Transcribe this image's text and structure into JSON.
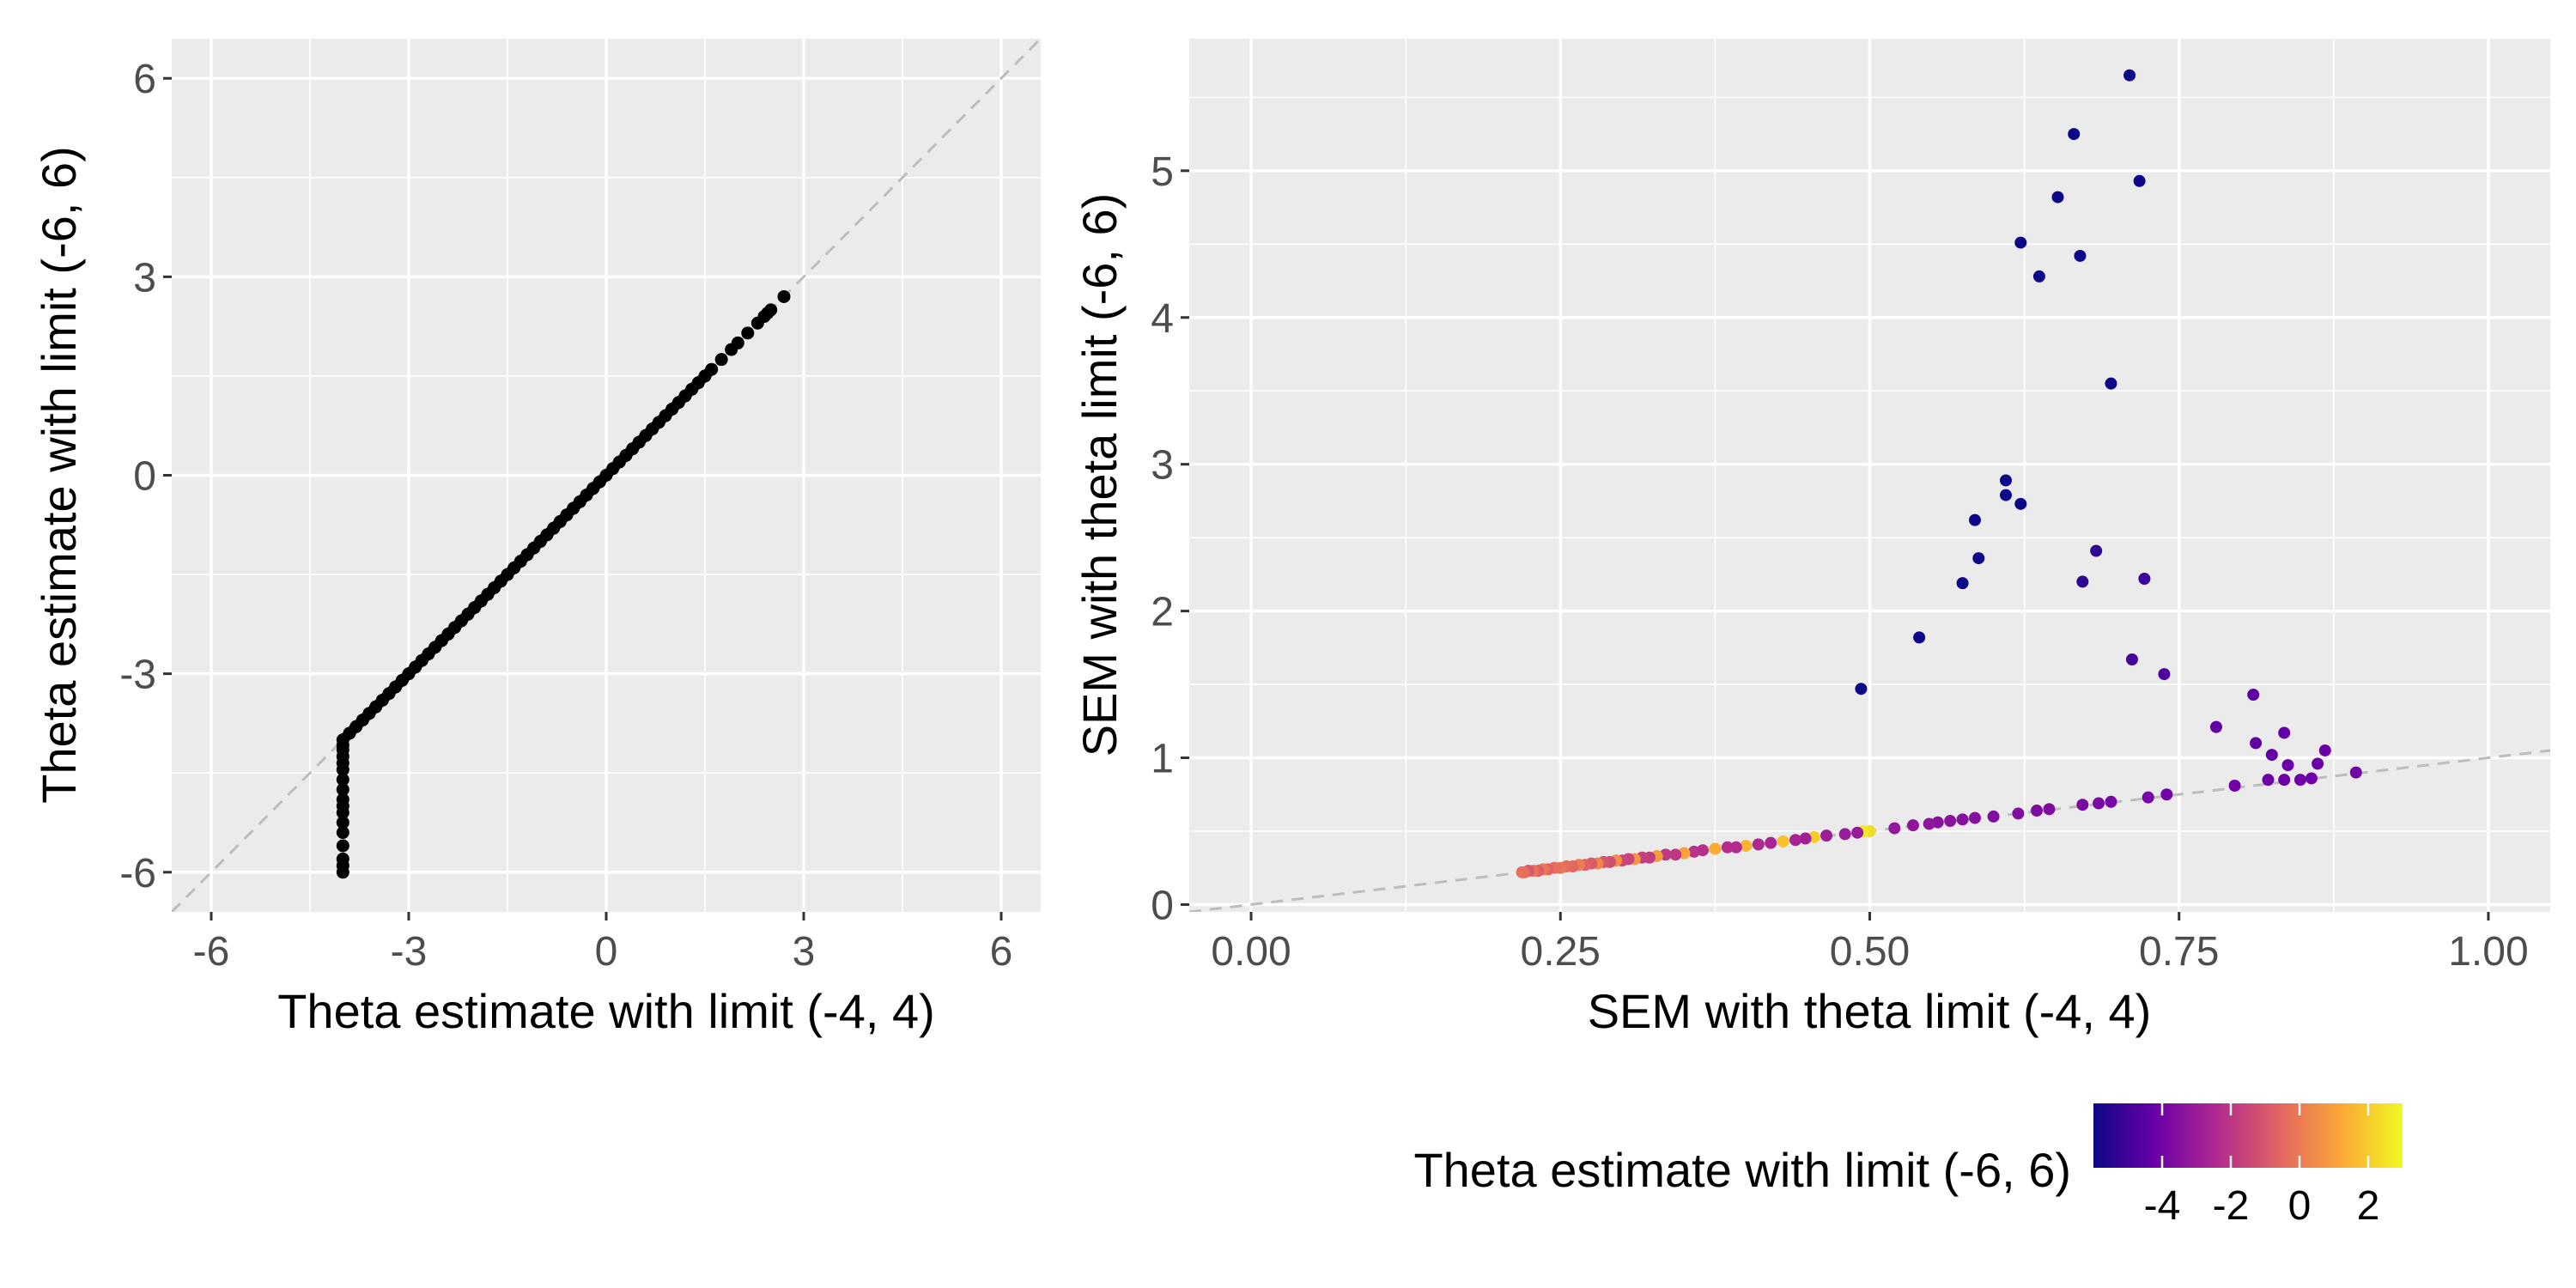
{
  "chart_data": [
    {
      "type": "scatter",
      "xlabel": "Theta estimate with limit (-4, 4)",
      "ylabel": "Theta estimate with limit (-6, 6)",
      "xlim": [
        -6.6,
        6.6
      ],
      "ylim": [
        -6.6,
        6.6
      ],
      "xticks": [
        -6,
        -3,
        0,
        3,
        6
      ],
      "yticks": [
        -6,
        -3,
        0,
        3,
        6
      ],
      "xtick_labels": [
        "-6",
        "-3",
        "0",
        "3",
        "6"
      ],
      "ytick_labels": [
        "-6",
        "-3",
        "0",
        "3",
        "6"
      ],
      "grid": true,
      "reference_line": {
        "style": "dashed",
        "color": "#bdbdbd",
        "intercept": 0,
        "slope": 1
      },
      "point_color": "#000000",
      "points": [
        [
          -4.0,
          -6.0
        ],
        [
          -4.0,
          -5.9
        ],
        [
          -4.0,
          -5.8
        ],
        [
          -4.0,
          -5.6
        ],
        [
          -4.0,
          -5.4
        ],
        [
          -4.0,
          -5.25
        ],
        [
          -4.0,
          -5.1
        ],
        [
          -4.0,
          -5.0
        ],
        [
          -4.0,
          -4.9
        ],
        [
          -4.0,
          -4.75
        ],
        [
          -4.0,
          -4.6
        ],
        [
          -4.0,
          -4.45
        ],
        [
          -4.0,
          -4.35
        ],
        [
          -4.0,
          -4.25
        ],
        [
          -4.0,
          -4.15
        ],
        [
          -4.0,
          -4.08
        ],
        [
          -4.0,
          -4.0
        ],
        [
          -3.9,
          -3.9
        ],
        [
          -3.8,
          -3.8
        ],
        [
          -3.7,
          -3.7
        ],
        [
          -3.6,
          -3.6
        ],
        [
          -3.5,
          -3.5
        ],
        [
          -3.4,
          -3.4
        ],
        [
          -3.3,
          -3.3
        ],
        [
          -3.2,
          -3.2
        ],
        [
          -3.1,
          -3.1
        ],
        [
          -3.0,
          -3.0
        ],
        [
          -2.9,
          -2.9
        ],
        [
          -2.8,
          -2.8
        ],
        [
          -2.7,
          -2.7
        ],
        [
          -2.6,
          -2.6
        ],
        [
          -2.5,
          -2.5
        ],
        [
          -2.4,
          -2.4
        ],
        [
          -2.3,
          -2.3
        ],
        [
          -2.2,
          -2.2
        ],
        [
          -2.1,
          -2.1
        ],
        [
          -2.0,
          -2.0
        ],
        [
          -1.9,
          -1.9
        ],
        [
          -1.8,
          -1.8
        ],
        [
          -1.7,
          -1.7
        ],
        [
          -1.6,
          -1.6
        ],
        [
          -1.5,
          -1.5
        ],
        [
          -1.4,
          -1.4
        ],
        [
          -1.3,
          -1.3
        ],
        [
          -1.2,
          -1.2
        ],
        [
          -1.1,
          -1.1
        ],
        [
          -1.0,
          -1.0
        ],
        [
          -0.9,
          -0.9
        ],
        [
          -0.8,
          -0.8
        ],
        [
          -0.7,
          -0.7
        ],
        [
          -0.6,
          -0.6
        ],
        [
          -0.5,
          -0.5
        ],
        [
          -0.4,
          -0.4
        ],
        [
          -0.3,
          -0.3
        ],
        [
          -0.2,
          -0.2
        ],
        [
          -0.1,
          -0.1
        ],
        [
          0.0,
          0.0
        ],
        [
          0.1,
          0.1
        ],
        [
          0.2,
          0.2
        ],
        [
          0.3,
          0.3
        ],
        [
          0.4,
          0.4
        ],
        [
          0.5,
          0.5
        ],
        [
          0.6,
          0.6
        ],
        [
          0.7,
          0.7
        ],
        [
          0.8,
          0.8
        ],
        [
          0.9,
          0.9
        ],
        [
          1.0,
          1.0
        ],
        [
          1.1,
          1.1
        ],
        [
          1.2,
          1.2
        ],
        [
          1.3,
          1.3
        ],
        [
          1.4,
          1.4
        ],
        [
          1.5,
          1.5
        ],
        [
          1.6,
          1.6
        ],
        [
          1.75,
          1.75
        ],
        [
          1.9,
          1.9
        ],
        [
          2.0,
          2.0
        ],
        [
          2.15,
          2.15
        ],
        [
          2.3,
          2.3
        ],
        [
          2.4,
          2.4
        ],
        [
          2.45,
          2.45
        ],
        [
          2.5,
          2.5
        ],
        [
          2.7,
          2.7
        ]
      ]
    },
    {
      "type": "scatter",
      "xlabel": "SEM with theta limit (-4, 4)",
      "ylabel": "SEM with theta limit (-6, 6)",
      "xlim": [
        -0.05,
        1.05
      ],
      "ylim": [
        -0.05,
        5.9
      ],
      "xticks": [
        0.0,
        0.25,
        0.5,
        0.75,
        1.0
      ],
      "yticks": [
        0,
        1,
        2,
        3,
        4,
        5
      ],
      "xtick_labels": [
        "0.00",
        "0.25",
        "0.50",
        "0.75",
        "1.00"
      ],
      "ytick_labels": [
        "0",
        "1",
        "2",
        "3",
        "4",
        "5"
      ],
      "grid": true,
      "reference_line": {
        "style": "dashed",
        "color": "#bdbdbd",
        "intercept": 0,
        "slope": 1
      },
      "color_mapping": "theta estimate with limit (-6, 6)",
      "points": [
        {
          "x": 0.493,
          "y": 1.47,
          "theta": -6
        },
        {
          "x": 0.54,
          "y": 1.82,
          "theta": -6
        },
        {
          "x": 0.575,
          "y": 2.19,
          "theta": -6
        },
        {
          "x": 0.585,
          "y": 2.62,
          "theta": -6
        },
        {
          "x": 0.588,
          "y": 2.36,
          "theta": -6
        },
        {
          "x": 0.61,
          "y": 2.89,
          "theta": -6
        },
        {
          "x": 0.61,
          "y": 2.79,
          "theta": -6
        },
        {
          "x": 0.622,
          "y": 4.51,
          "theta": -6
        },
        {
          "x": 0.622,
          "y": 2.73,
          "theta": -6
        },
        {
          "x": 0.637,
          "y": 4.28,
          "theta": -6
        },
        {
          "x": 0.652,
          "y": 4.82,
          "theta": -6
        },
        {
          "x": 0.665,
          "y": 5.25,
          "theta": -6
        },
        {
          "x": 0.67,
          "y": 4.42,
          "theta": -6
        },
        {
          "x": 0.695,
          "y": 3.55,
          "theta": -6
        },
        {
          "x": 0.71,
          "y": 5.65,
          "theta": -6
        },
        {
          "x": 0.718,
          "y": 4.93,
          "theta": -6
        },
        {
          "x": 0.672,
          "y": 2.2,
          "theta": -5.3
        },
        {
          "x": 0.683,
          "y": 2.41,
          "theta": -5.3
        },
        {
          "x": 0.722,
          "y": 2.22,
          "theta": -5.1
        },
        {
          "x": 0.712,
          "y": 1.67,
          "theta": -4.9
        },
        {
          "x": 0.738,
          "y": 1.57,
          "theta": -4.7
        },
        {
          "x": 0.81,
          "y": 1.43,
          "theta": -4.5
        },
        {
          "x": 0.78,
          "y": 1.21,
          "theta": -4.4
        },
        {
          "x": 0.812,
          "y": 1.1,
          "theta": -4.4
        },
        {
          "x": 0.825,
          "y": 1.02,
          "theta": -4.3
        },
        {
          "x": 0.835,
          "y": 1.17,
          "theta": -4.3
        },
        {
          "x": 0.838,
          "y": 0.95,
          "theta": -4.2
        },
        {
          "x": 0.868,
          "y": 1.05,
          "theta": -4.2
        },
        {
          "x": 0.862,
          "y": 0.96,
          "theta": -4.2
        },
        {
          "x": 0.795,
          "y": 0.81,
          "theta": -4.1
        },
        {
          "x": 0.822,
          "y": 0.85,
          "theta": -4.1
        },
        {
          "x": 0.835,
          "y": 0.85,
          "theta": -4.1
        },
        {
          "x": 0.848,
          "y": 0.85,
          "theta": -4.1
        },
        {
          "x": 0.857,
          "y": 0.86,
          "theta": -4.1
        },
        {
          "x": 0.893,
          "y": 0.9,
          "theta": -4.0
        },
        {
          "x": 0.74,
          "y": 0.75,
          "theta": -4.0
        },
        {
          "x": 0.725,
          "y": 0.73,
          "theta": -3.9
        },
        {
          "x": 0.695,
          "y": 0.7,
          "theta": -3.9
        },
        {
          "x": 0.685,
          "y": 0.69,
          "theta": -3.8
        },
        {
          "x": 0.672,
          "y": 0.68,
          "theta": -3.8
        },
        {
          "x": 0.645,
          "y": 0.65,
          "theta": -3.7
        },
        {
          "x": 0.635,
          "y": 0.64,
          "theta": -3.7
        },
        {
          "x": 0.62,
          "y": 0.62,
          "theta": -3.6
        },
        {
          "x": 0.6,
          "y": 0.6,
          "theta": -3.6
        },
        {
          "x": 0.585,
          "y": 0.59,
          "theta": -3.5
        },
        {
          "x": 0.575,
          "y": 0.58,
          "theta": -3.5
        },
        {
          "x": 0.565,
          "y": 0.57,
          "theta": -3.4
        },
        {
          "x": 0.555,
          "y": 0.56,
          "theta": -3.4
        },
        {
          "x": 0.548,
          "y": 0.55,
          "theta": -3.3
        },
        {
          "x": 0.535,
          "y": 0.54,
          "theta": -3.3
        },
        {
          "x": 0.52,
          "y": 0.52,
          "theta": -3.2
        },
        {
          "x": 0.5,
          "y": 0.5,
          "theta": 2.4
        },
        {
          "x": 0.495,
          "y": 0.5,
          "theta": 2.6
        },
        {
          "x": 0.49,
          "y": 0.49,
          "theta": -3.1
        },
        {
          "x": 0.48,
          "y": 0.48,
          "theta": -3.0
        },
        {
          "x": 0.465,
          "y": 0.47,
          "theta": -2.9
        },
        {
          "x": 0.455,
          "y": 0.46,
          "theta": 2.0
        },
        {
          "x": 0.448,
          "y": 0.45,
          "theta": -2.8
        },
        {
          "x": 0.44,
          "y": 0.44,
          "theta": -2.7
        },
        {
          "x": 0.43,
          "y": 0.43,
          "theta": 1.8
        },
        {
          "x": 0.42,
          "y": 0.42,
          "theta": -2.6
        },
        {
          "x": 0.41,
          "y": 0.41,
          "theta": -2.5
        },
        {
          "x": 0.4,
          "y": 0.4,
          "theta": 1.5
        },
        {
          "x": 0.392,
          "y": 0.39,
          "theta": -2.4
        },
        {
          "x": 0.385,
          "y": 0.39,
          "theta": -2.3
        },
        {
          "x": 0.375,
          "y": 0.38,
          "theta": 1.3
        },
        {
          "x": 0.365,
          "y": 0.37,
          "theta": -2.2
        },
        {
          "x": 0.358,
          "y": 0.36,
          "theta": -2.1
        },
        {
          "x": 0.35,
          "y": 0.35,
          "theta": 1.1
        },
        {
          "x": 0.343,
          "y": 0.34,
          "theta": -2.0
        },
        {
          "x": 0.335,
          "y": 0.34,
          "theta": -1.9
        },
        {
          "x": 0.328,
          "y": 0.33,
          "theta": 0.9
        },
        {
          "x": 0.322,
          "y": 0.32,
          "theta": -1.8
        },
        {
          "x": 0.316,
          "y": 0.32,
          "theta": -1.7
        },
        {
          "x": 0.31,
          "y": 0.31,
          "theta": 0.7
        },
        {
          "x": 0.305,
          "y": 0.31,
          "theta": -1.6
        },
        {
          "x": 0.3,
          "y": 0.3,
          "theta": -1.5
        },
        {
          "x": 0.295,
          "y": 0.3,
          "theta": 0.5
        },
        {
          "x": 0.29,
          "y": 0.29,
          "theta": -1.3
        },
        {
          "x": 0.285,
          "y": 0.29,
          "theta": -1.1
        },
        {
          "x": 0.28,
          "y": 0.28,
          "theta": 0.3
        },
        {
          "x": 0.275,
          "y": 0.28,
          "theta": -0.9
        },
        {
          "x": 0.27,
          "y": 0.27,
          "theta": -0.7
        },
        {
          "x": 0.265,
          "y": 0.27,
          "theta": 0.1
        },
        {
          "x": 0.26,
          "y": 0.26,
          "theta": -0.5
        },
        {
          "x": 0.255,
          "y": 0.26,
          "theta": -0.4
        },
        {
          "x": 0.25,
          "y": 0.25,
          "theta": -0.2
        },
        {
          "x": 0.245,
          "y": 0.25,
          "theta": -0.3
        },
        {
          "x": 0.24,
          "y": 0.24,
          "theta": -0.6
        },
        {
          "x": 0.236,
          "y": 0.24,
          "theta": -0.1
        },
        {
          "x": 0.232,
          "y": 0.23,
          "theta": -0.8
        },
        {
          "x": 0.228,
          "y": 0.23,
          "theta": -0.2
        },
        {
          "x": 0.224,
          "y": 0.23,
          "theta": -1.0
        },
        {
          "x": 0.221,
          "y": 0.22,
          "theta": -0.5
        },
        {
          "x": 0.219,
          "y": 0.22,
          "theta": -0.3
        }
      ],
      "legend": {
        "title": "Theta estimate with limit (-6, 6)",
        "type": "colorbar",
        "placement": "bottom-right",
        "range": [
          -6,
          3
        ],
        "ticks": [
          -4,
          -2,
          0,
          2
        ],
        "tick_labels": [
          "-4",
          "-2",
          "0",
          "2"
        ],
        "colors": [
          "#0d0887",
          "#6a00a8",
          "#b12a90",
          "#e16462",
          "#fca636",
          "#f0f921"
        ]
      }
    }
  ]
}
